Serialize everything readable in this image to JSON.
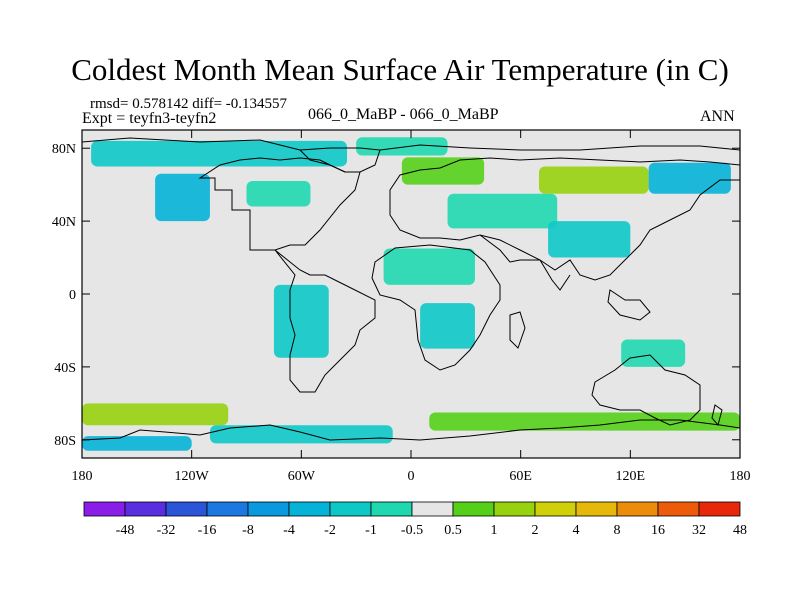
{
  "chart_data": {
    "type": "heatmap",
    "title": "Coldest Month Mean Surface Air Temperature (in C)",
    "stats_text": "rmsd= 0.578142 diff= -0.134557",
    "experiment_text": "Expt = teyfn3-teyfn2",
    "case_text": "066_0_MaBP - 066_0_MaBP",
    "season": "ANN",
    "x_ticks": [
      "180",
      "120W",
      "60W",
      "0",
      "60E",
      "120E",
      "180"
    ],
    "x_tick_values": [
      -180,
      -120,
      -60,
      0,
      60,
      120,
      180
    ],
    "y_ticks": [
      "80N",
      "40N",
      "0",
      "40S",
      "80S"
    ],
    "y_tick_values": [
      80,
      40,
      0,
      -40,
      -80
    ],
    "xlim": [
      -180,
      180
    ],
    "ylim": [
      -90,
      90
    ],
    "colorbar": {
      "labels": [
        "-48",
        "-32",
        "-16",
        "-8",
        "-4",
        "-2",
        "-1",
        "-0.5",
        "0.5",
        "1",
        "2",
        "4",
        "8",
        "16",
        "32",
        "48"
      ],
      "colors": [
        "#8a1ee8",
        "#5a2ee0",
        "#2a55d8",
        "#1a78e0",
        "#0a98de",
        "#05b2d8",
        "#0ec8c8",
        "#20d8b0",
        "#e6e6e6",
        "#55d018",
        "#98d20e",
        "#d0d00a",
        "#e6b80a",
        "#ec8c0a",
        "#ec5a0a",
        "#e8280a"
      ]
    },
    "background_color": "#e6e6e6",
    "anomaly_regions": [
      {
        "name": "arctic-north-america",
        "lon": [
          -175,
          -35
        ],
        "lat": [
          70,
          84
        ],
        "color": "#0ec8c8"
      },
      {
        "name": "greenland-arctic",
        "lon": [
          -30,
          20
        ],
        "lat": [
          76,
          86
        ],
        "color": "#20d8b0"
      },
      {
        "name": "western-north-america",
        "lon": [
          -140,
          -110
        ],
        "lat": [
          40,
          66
        ],
        "color": "#05b2d8"
      },
      {
        "name": "eastern-canada",
        "lon": [
          -90,
          -55
        ],
        "lat": [
          48,
          62
        ],
        "color": "#20d8b0"
      },
      {
        "name": "northern-europe",
        "lon": [
          -5,
          40
        ],
        "lat": [
          60,
          75
        ],
        "color": "#55d018"
      },
      {
        "name": "central-eurasia",
        "lon": [
          20,
          80
        ],
        "lat": [
          36,
          55
        ],
        "color": "#20d8b0"
      },
      {
        "name": "siberia",
        "lon": [
          70,
          130
        ],
        "lat": [
          55,
          70
        ],
        "color": "#98d20e"
      },
      {
        "name": "east-asia",
        "lon": [
          75,
          120
        ],
        "lat": [
          20,
          40
        ],
        "color": "#0ec8c8"
      },
      {
        "name": "far-east-siberia",
        "lon": [
          130,
          175
        ],
        "lat": [
          55,
          72
        ],
        "color": "#05b2d8"
      },
      {
        "name": "north-africa",
        "lon": [
          -15,
          35
        ],
        "lat": [
          5,
          25
        ],
        "color": "#20d8b0"
      },
      {
        "name": "southern-africa",
        "lon": [
          5,
          35
        ],
        "lat": [
          -30,
          -5
        ],
        "color": "#0ec8c8"
      },
      {
        "name": "south-america",
        "lon": [
          -75,
          -45
        ],
        "lat": [
          -35,
          5
        ],
        "color": "#0ec8c8"
      },
      {
        "name": "southern-ocean-pacific",
        "lon": [
          -180,
          -100
        ],
        "lat": [
          -72,
          -60
        ],
        "color": "#98d20e"
      },
      {
        "name": "southern-ocean-indian",
        "lon": [
          10,
          180
        ],
        "lat": [
          -75,
          -65
        ],
        "color": "#55d018"
      },
      {
        "name": "antarctic-atlantic",
        "lon": [
          -110,
          -10
        ],
        "lat": [
          -82,
          -72
        ],
        "color": "#0ec8c8"
      },
      {
        "name": "antarctic-pacific",
        "lon": [
          -180,
          -120
        ],
        "lat": [
          -86,
          -78
        ],
        "color": "#05b2d8"
      },
      {
        "name": "australia-south",
        "lon": [
          115,
          150
        ],
        "lat": [
          -40,
          -25
        ],
        "color": "#20d8b0"
      }
    ]
  }
}
